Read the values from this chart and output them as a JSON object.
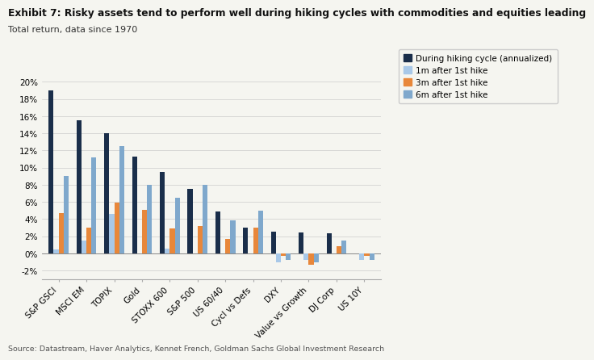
{
  "title_bold": "Exhibit 7: Risky assets tend to perform well during hiking cycles with commodities and equities leading",
  "subtitle": "Total return, data since 1970",
  "source": "Source: Datastream, Haver Analytics, Kennet French, Goldman Sachs Global Investment Research",
  "categories": [
    "S&P GSCI",
    "MSCI EM",
    "TOPIX",
    "Gold",
    "STOXX 600",
    "S&P 500",
    "US 60/40",
    "Cycl vs Defs",
    "DXY",
    "Value vs Growth",
    "DJ Corp",
    "US 10Y"
  ],
  "series": {
    "During hiking cycle (annualized)": [
      19.0,
      15.5,
      14.0,
      11.3,
      9.5,
      7.5,
      4.9,
      3.0,
      2.5,
      2.4,
      2.3,
      0.0
    ],
    "1m after 1st hike": [
      0.5,
      1.5,
      4.6,
      0.0,
      0.6,
      0.0,
      0.0,
      0.0,
      -1.0,
      -0.8,
      0.0,
      -0.8
    ],
    "3m after 1st hike": [
      4.7,
      3.0,
      5.9,
      5.1,
      2.9,
      3.2,
      1.7,
      3.0,
      -0.3,
      -1.3,
      0.8,
      -0.3
    ],
    "6m after 1st hike": [
      9.0,
      11.2,
      12.5,
      8.0,
      6.5,
      8.0,
      3.8,
      5.0,
      -0.8,
      -1.0,
      1.5,
      -0.8
    ]
  },
  "colors": {
    "During hiking cycle (annualized)": "#1a2e4a",
    "1m after 1st hike": "#a8c8e8",
    "3m after 1st hike": "#e8873a",
    "6m after 1st hike": "#7fa8cc"
  },
  "ylim": [
    -3,
    21
  ],
  "yticks": [
    -2,
    0,
    2,
    4,
    6,
    8,
    10,
    12,
    14,
    16,
    18,
    20
  ],
  "background_color": "#f5f5f0",
  "plot_bg": "#f5f5f0",
  "title_fontsize": 8.8,
  "subtitle_fontsize": 8.0,
  "legend_fontsize": 7.5,
  "tick_fontsize": 7.5,
  "source_fontsize": 6.8
}
